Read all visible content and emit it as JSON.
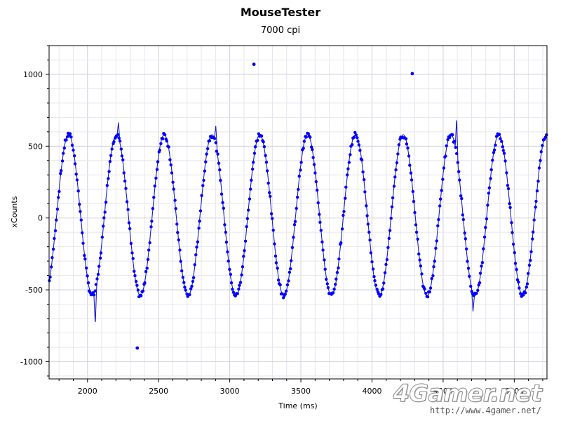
{
  "chart_data": {
    "type": "scatter",
    "title": "MouseTester",
    "subtitle": "7000 cpi",
    "xlabel": "Time (ms)",
    "ylabel": "xCounts",
    "xlim": [
      1730,
      5230
    ],
    "ylim": [
      -1120,
      1200
    ],
    "x_ticks": [
      2000,
      2500,
      3000,
      3500,
      4000,
      4500,
      5000
    ],
    "y_ticks": [
      1000,
      500,
      0,
      -500,
      -1000
    ],
    "grid": true,
    "series": [
      {
        "kind": "points",
        "color": "#0000ff",
        "sine": {
          "t0": 1730,
          "end": 5230,
          "period": 336,
          "amplitude": 560,
          "offset": 20,
          "y_at_start": -450
        },
        "outliers": [
          {
            "x": 3170,
            "y": 1070
          },
          {
            "x": 4283,
            "y": 1005
          },
          {
            "x": 2350,
            "y": -905
          }
        ]
      },
      {
        "kind": "line",
        "color": "#1a1acd",
        "spikes": [
          {
            "x": 2055,
            "y": -745
          },
          {
            "x": 2218,
            "y": 665
          },
          {
            "x": 2902,
            "y": 640
          },
          {
            "x": 4595,
            "y": 700
          },
          {
            "x": 4710,
            "y": -650
          }
        ]
      }
    ]
  },
  "watermark": {
    "logo": "4Gamer.net",
    "url": "http://www.4gamer.net/"
  }
}
